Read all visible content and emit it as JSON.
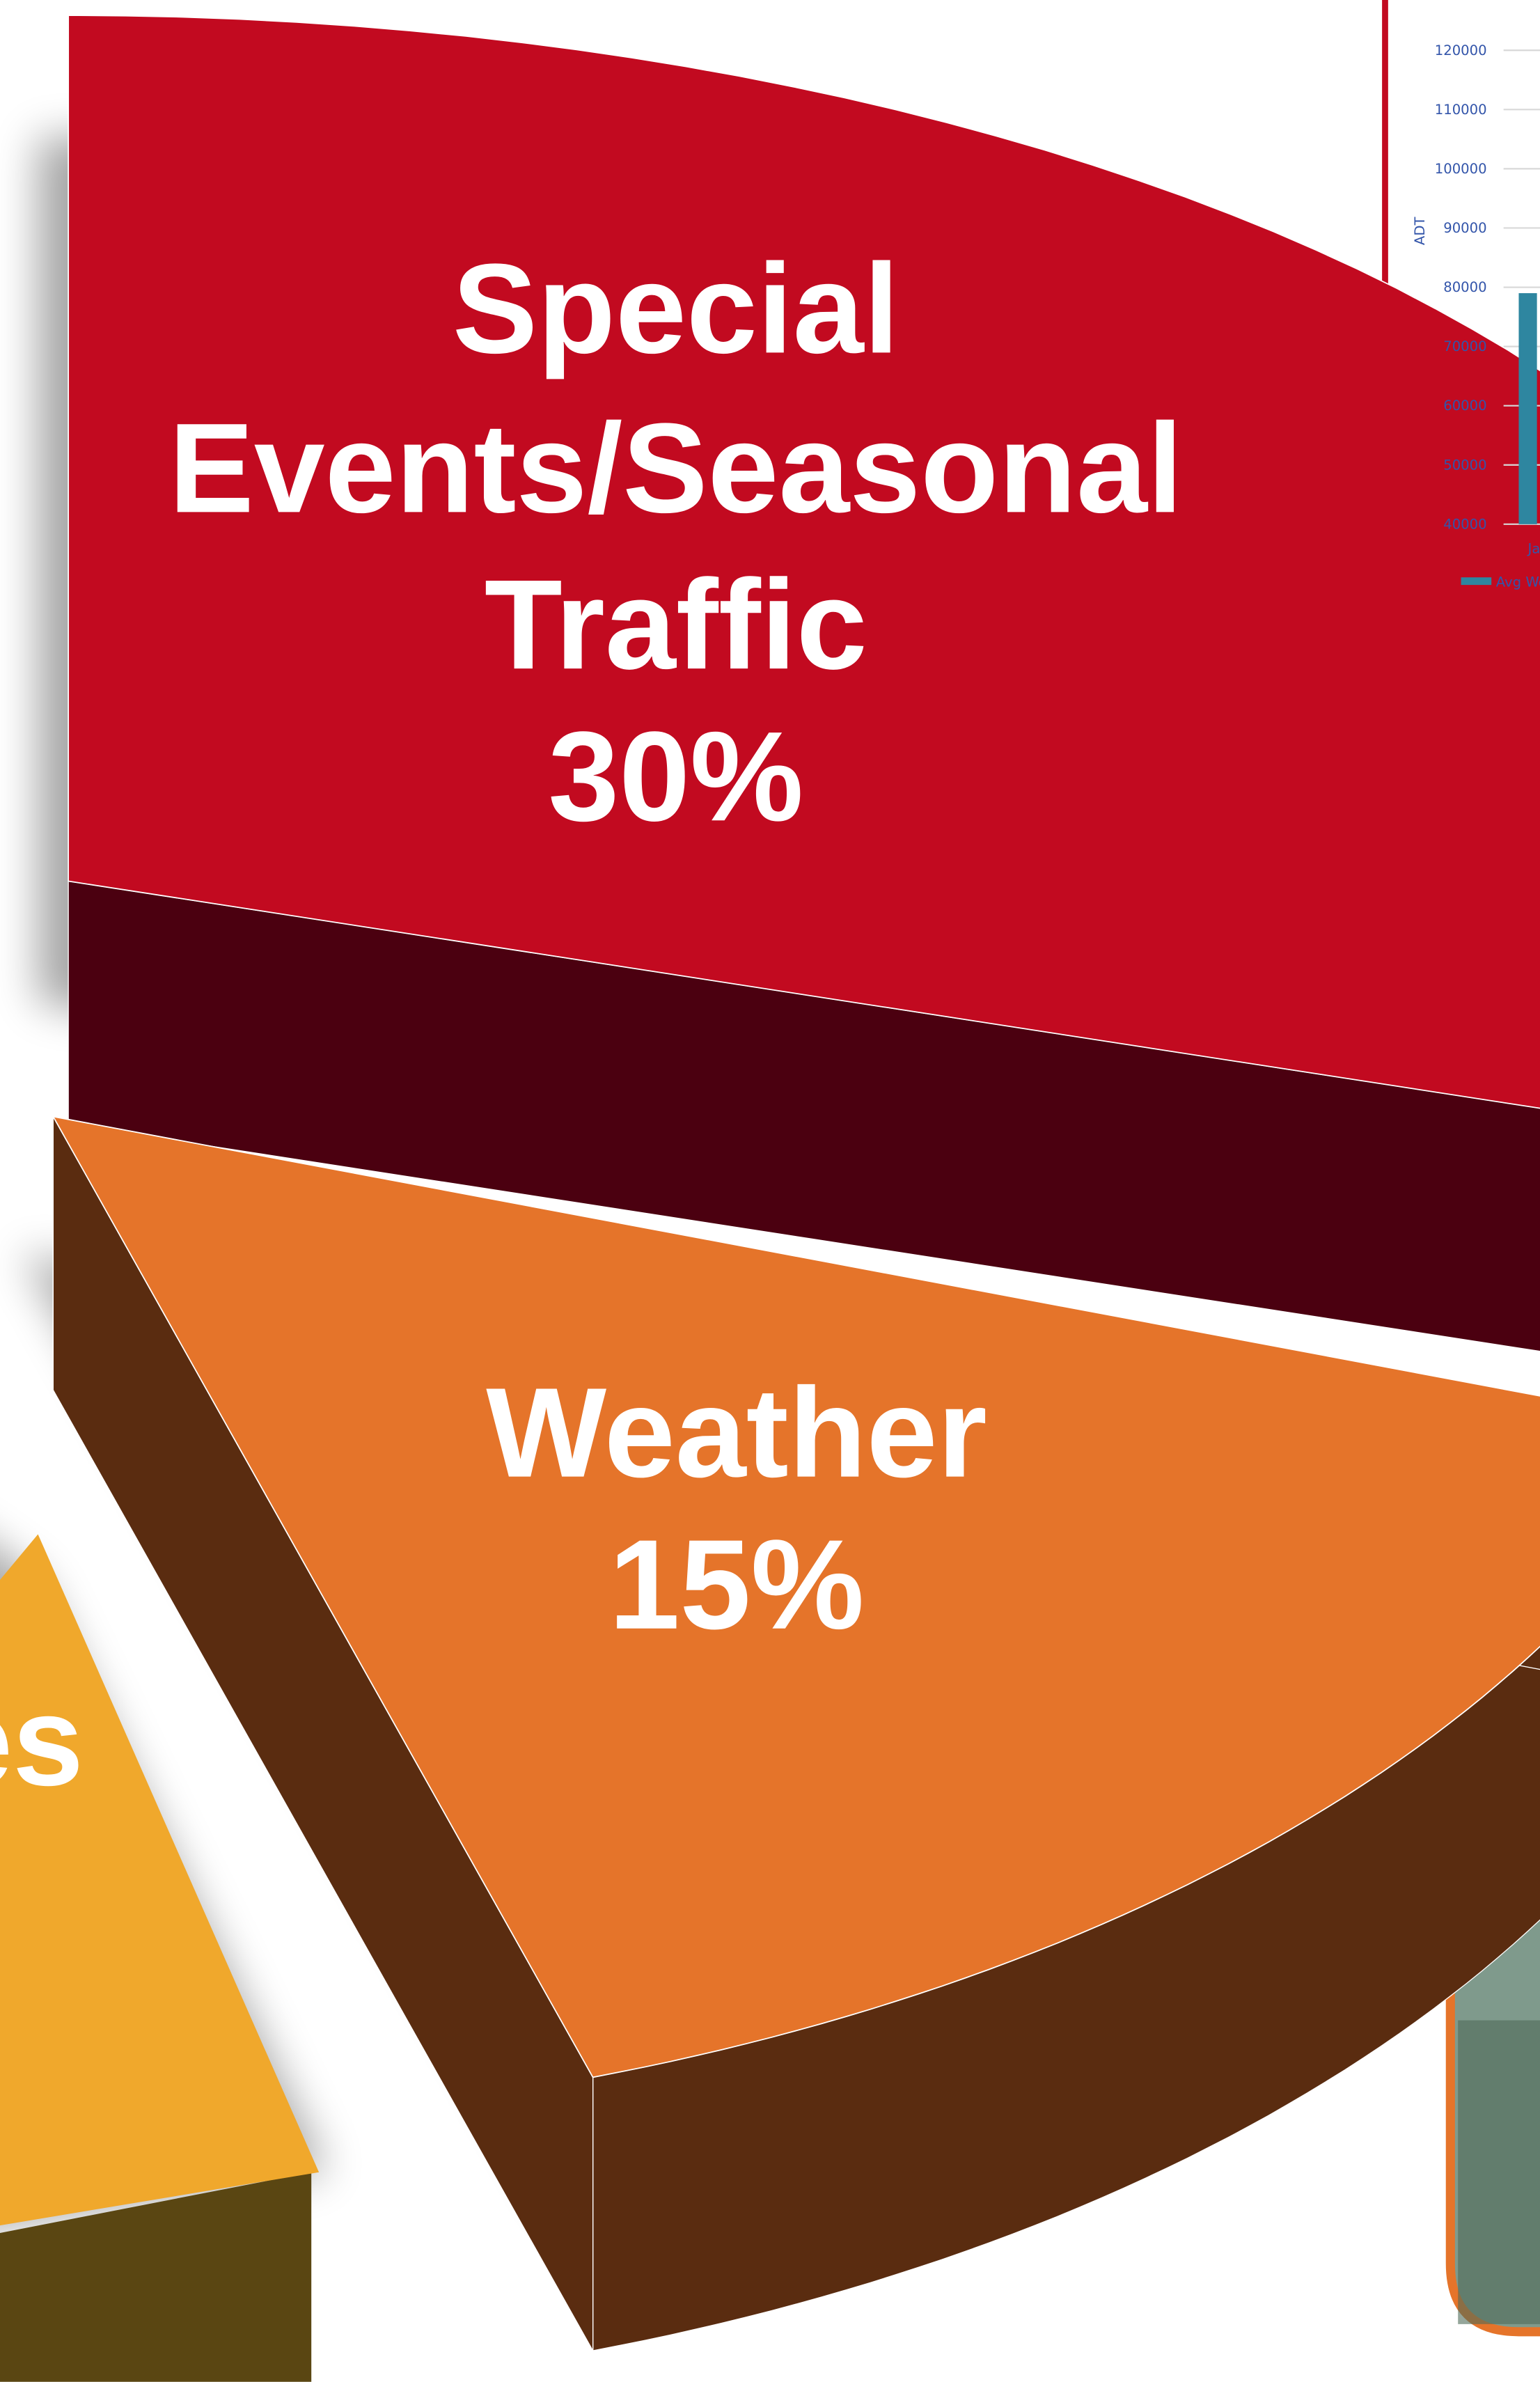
{
  "chart_data": [
    {
      "type": "pie",
      "categories": [
        "Special Events/Seasonal Traffic",
        "Weather"
      ],
      "values": [
        30,
        15
      ],
      "value_labels": [
        "30%",
        "15%"
      ],
      "colors": [
        "#c20a20",
        "#e5742a"
      ],
      "side_colors": [
        "#4b0010",
        "#5a2c10"
      ],
      "cut_label": "es"
    },
    {
      "type": "bar",
      "categories": [
        "Ja"
      ],
      "series": [
        {
          "name": "Avg We",
          "color": "#2e86a0",
          "values": [
            79000
          ]
        }
      ],
      "y_label": "ADT",
      "ylim": [
        40000,
        120000
      ],
      "yticks": [
        40000,
        50000,
        60000,
        70000,
        80000,
        90000,
        100000,
        110000,
        120000
      ]
    }
  ]
}
